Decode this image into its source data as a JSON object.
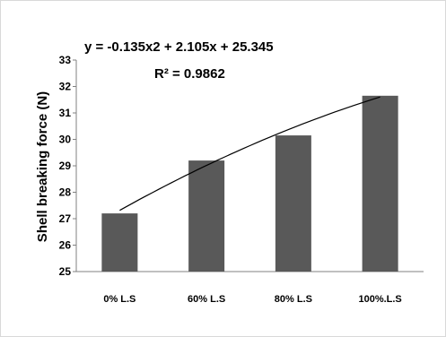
{
  "chart_data": {
    "type": "bar",
    "categories": [
      "0% L.S",
      "60% L.S",
      "80% L.S",
      "100%.L.S"
    ],
    "values": [
      27.2,
      29.2,
      30.15,
      31.65
    ],
    "ylabel": "Shell breaking force (N)",
    "xlabel": "",
    "ylim": [
      25,
      33
    ],
    "yticks": [
      25,
      26,
      27,
      28,
      29,
      30,
      31,
      32,
      33
    ],
    "grid": false,
    "legend": "none",
    "bar_color": "#595959",
    "trendline": {
      "type": "polynomial",
      "order": 2,
      "equation": "y = -0.135x2 + 2.105x + 25.345",
      "r2_label": "R² = 0.9862",
      "coefficients": [
        -0.135,
        2.105,
        25.345
      ],
      "color": "#000000"
    }
  }
}
